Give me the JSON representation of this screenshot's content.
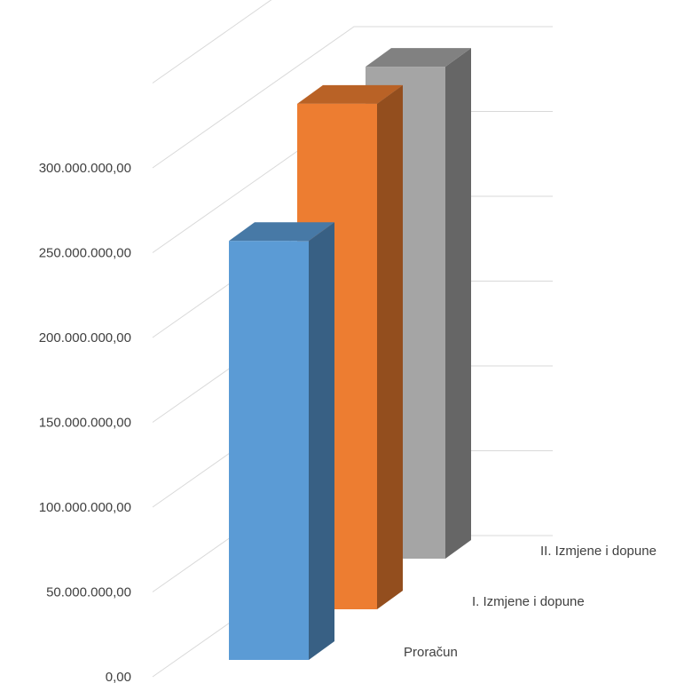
{
  "chart_data": {
    "type": "bar",
    "style": "3d-column",
    "title": "",
    "xlabel": "",
    "ylabel": "",
    "grid": true,
    "legend": "none",
    "ylim": [
      0,
      350000000
    ],
    "yticks": [
      {
        "value": 0,
        "label": "0,00"
      },
      {
        "value": 50000000,
        "label": "50.000.000,00"
      },
      {
        "value": 100000000,
        "label": "100.000.000,00"
      },
      {
        "value": 150000000,
        "label": "150.000.000,00"
      },
      {
        "value": 200000000,
        "label": "200.000.000,00"
      },
      {
        "value": 250000000,
        "label": "250.000.000,00"
      },
      {
        "value": 300000000,
        "label": "300.000.000,00"
      }
    ],
    "categories": [
      "Proračun",
      "I. Izmjene i dopune",
      "II. Izmjene i dopune"
    ],
    "values": [
      247000000,
      298000000,
      290000000
    ],
    "colors": [
      "#5b9bd5",
      "#ed7d31",
      "#a5a5a5"
    ]
  }
}
